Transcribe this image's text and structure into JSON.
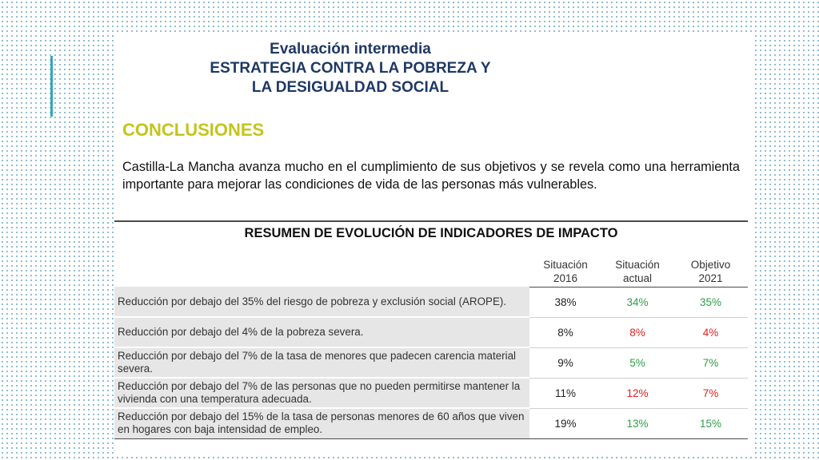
{
  "header": {
    "line1": "Evaluación intermedia",
    "line2": "ESTRATEGIA CONTRA LA POBREZA Y",
    "line3": "LA DESIGUALDAD SOCIAL"
  },
  "section_title": "CONCLUSIONES",
  "paragraph": "Castilla-La Mancha avanza mucho en el cumplimiento de sus objetivos y se revela como una herramienta importante para mejorar las condiciones de vida de las personas más vulnerables.",
  "table": {
    "title": "RESUMEN DE EVOLUCIÓN DE INDICADORES DE IMPACTO",
    "columns": [
      [
        "Situación",
        "2016"
      ],
      [
        "Situación",
        "actual"
      ],
      [
        "Objetivo",
        "2021"
      ]
    ],
    "rows": [
      {
        "indicator": "Reducción por debajo del 35% del riesgo de pobreza y exclusión social (AROPE).",
        "values": [
          "38%",
          "34%",
          "35%"
        ]
      },
      {
        "indicator": "Reducción por debajo del 4% de la pobreza severa.",
        "values": [
          "8%",
          "8%",
          "4%"
        ]
      },
      {
        "indicator": "Reducción por debajo del 7% de la tasa de menores que padecen carencia material severa.",
        "values": [
          "9%",
          "5%",
          "7%"
        ]
      },
      {
        "indicator": "Reducción por debajo del 7% de las personas que no pueden permitirse mantener la vivienda con una temperatura adecuada.",
        "values": [
          "11%",
          "12%",
          "7%"
        ]
      },
      {
        "indicator": "Reducción por debajo del 15% de la tasa de personas menores de 60 años que viven en hogares con baja intensidad de empleo.",
        "values": [
          "19%",
          "13%",
          "15%"
        ]
      }
    ],
    "value_colors": {
      "black": "#222222",
      "green": "#2e9e47",
      "red": "#e02020"
    }
  },
  "colors": {
    "header_text": "#1f3864",
    "section_title": "#c4c41c",
    "accent_line": "#33a6bd",
    "dot_pattern": "#7fb3c8"
  }
}
